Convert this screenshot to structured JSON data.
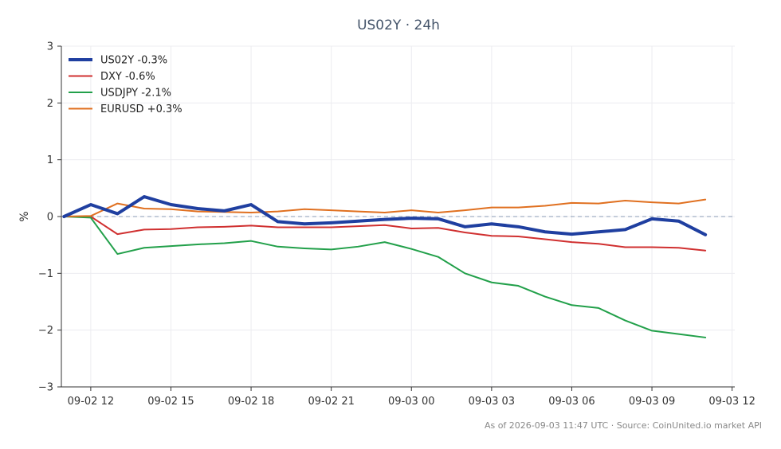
{
  "chart_data": {
    "type": "line",
    "title": "US02Y · 24h",
    "xlabel": "",
    "ylabel": "%",
    "ylim": [
      -3,
      3
    ],
    "yticks": [
      -3,
      -2,
      -1,
      0,
      1,
      2,
      3
    ],
    "ytick_labels": [
      "−3",
      "−2",
      "−1",
      "0",
      "1",
      "2",
      "3"
    ],
    "xlim": [
      10.9,
      36.1
    ],
    "xticks": [
      {
        "x": 12,
        "label": "09-02 12"
      },
      {
        "x": 15,
        "label": "09-02 15"
      },
      {
        "x": 18,
        "label": "09-02 18"
      },
      {
        "x": 21,
        "label": "09-02 21"
      },
      {
        "x": 24,
        "label": "09-03 00"
      },
      {
        "x": 27,
        "label": "09-03 03"
      },
      {
        "x": 30,
        "label": "09-03 06"
      },
      {
        "x": 33,
        "label": "09-03 09"
      },
      {
        "x": 36,
        "label": "09-03 12"
      }
    ],
    "x": [
      11,
      12,
      13,
      14,
      15,
      16,
      17,
      18,
      19,
      20,
      21,
      22,
      23,
      24,
      25,
      26,
      27,
      28,
      29,
      30,
      31,
      32,
      33,
      34,
      35
    ],
    "grid": true,
    "zero_line": true,
    "legend_position": "top-left",
    "series": [
      {
        "name": "US02Y -0.3%",
        "color": "#1f3fa0",
        "width": 4,
        "values": [
          0.0,
          0.21,
          0.05,
          0.35,
          0.21,
          0.14,
          0.1,
          0.21,
          -0.09,
          -0.13,
          -0.11,
          -0.08,
          -0.05,
          -0.03,
          -0.04,
          -0.18,
          -0.13,
          -0.18,
          -0.27,
          -0.31,
          -0.27,
          -0.23,
          -0.04,
          -0.08,
          -0.32
        ]
      },
      {
        "name": "DXY -0.6%",
        "color": "#d03030",
        "width": 2,
        "values": [
          0.0,
          0.0,
          -0.31,
          -0.23,
          -0.22,
          -0.19,
          -0.18,
          -0.16,
          -0.19,
          -0.19,
          -0.19,
          -0.17,
          -0.15,
          -0.21,
          -0.2,
          -0.28,
          -0.34,
          -0.35,
          -0.4,
          -0.45,
          -0.48,
          -0.54,
          -0.54,
          -0.55,
          -0.6
        ]
      },
      {
        "name": "USDJPY -2.1%",
        "color": "#22a04a",
        "width": 2,
        "values": [
          0.0,
          -0.02,
          -0.66,
          -0.55,
          -0.52,
          -0.49,
          -0.47,
          -0.43,
          -0.53,
          -0.56,
          -0.58,
          -0.53,
          -0.45,
          -0.57,
          -0.71,
          -1.0,
          -1.16,
          -1.22,
          -1.41,
          -1.56,
          -1.61,
          -1.83,
          -2.01,
          -2.07,
          -2.13
        ]
      },
      {
        "name": "EURUSD +0.3%",
        "color": "#e07020",
        "width": 2,
        "values": [
          0.0,
          0.01,
          0.23,
          0.14,
          0.13,
          0.09,
          0.08,
          0.07,
          0.09,
          0.13,
          0.11,
          0.09,
          0.07,
          0.11,
          0.07,
          0.11,
          0.16,
          0.16,
          0.19,
          0.24,
          0.23,
          0.28,
          0.25,
          0.23,
          0.3
        ]
      }
    ],
    "footer": "As of 2026-09-03 11:47 UTC · Source: CoinUnited.io market API"
  },
  "colors": {
    "axis": "#333333",
    "grid": "#ececf0",
    "zero_line": "#8a9bb5",
    "title": "#44546a"
  }
}
